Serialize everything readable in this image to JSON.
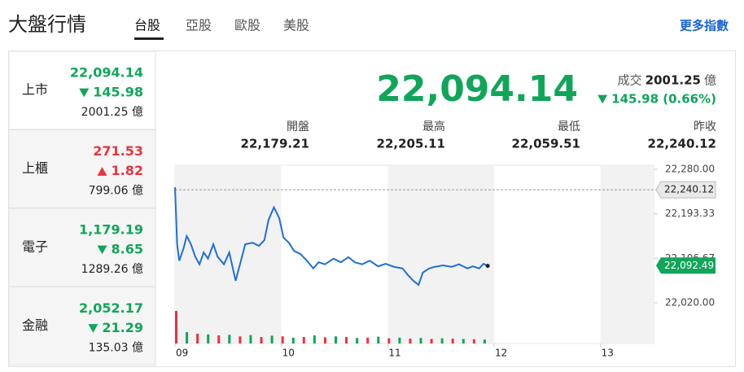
{
  "header": {
    "title": "大盤行情",
    "tabs": [
      "台股",
      "亞股",
      "歐股",
      "美股"
    ],
    "active_tab": 0,
    "more_link": "更多指數"
  },
  "sidebar": [
    {
      "name": "上市",
      "price": "22,094.14",
      "change": "145.98",
      "direction": "down",
      "turnover": "2001.25 億"
    },
    {
      "name": "上櫃",
      "price": "271.53",
      "change": "1.82",
      "direction": "up",
      "turnover": "799.06 億"
    },
    {
      "name": "電子",
      "price": "1,179.19",
      "change": "8.65",
      "direction": "down",
      "turnover": "1289.26 億"
    },
    {
      "name": "金融",
      "price": "2,052.17",
      "change": "21.29",
      "direction": "down",
      "turnover": "135.03 億"
    }
  ],
  "summary": {
    "price": "22,094.14",
    "turnover_label": "成交",
    "turnover": "2001.25",
    "turnover_unit": "億",
    "change": "145.98 (0.66%)",
    "direction": "down",
    "stats": [
      {
        "label": "開盤",
        "value": "22,179.21"
      },
      {
        "label": "最高",
        "value": "22,205.11"
      },
      {
        "label": "最低",
        "value": "22,059.51"
      },
      {
        "label": "昨收",
        "value": "22,240.12"
      }
    ]
  },
  "chart_data": {
    "type": "line",
    "color": "#1f6fd6",
    "x": [
      9.0,
      9.02,
      9.04,
      9.08,
      9.11,
      9.15,
      9.19,
      9.23,
      9.27,
      9.31,
      9.36,
      9.4,
      9.46,
      9.51,
      9.57,
      9.62,
      9.66,
      9.73,
      9.79,
      9.84,
      9.88,
      9.93,
      9.98,
      10.02,
      10.07,
      10.12,
      10.18,
      10.24,
      10.3,
      10.35,
      10.41,
      10.49,
      10.56,
      10.63,
      10.69,
      10.76,
      10.83,
      10.91,
      10.98,
      11.06,
      11.14,
      11.19,
      11.24,
      11.29,
      11.33,
      11.39,
      11.44,
      11.52,
      11.6,
      11.67,
      11.75,
      11.8,
      11.86,
      11.9,
      11.94
    ],
    "values": [
      22245,
      22134,
      22102,
      22126,
      22150,
      22134,
      22110,
      22095,
      22118,
      22106,
      22134,
      22110,
      22095,
      22118,
      22063,
      22102,
      22134,
      22137,
      22131,
      22142,
      22182,
      22206,
      22185,
      22147,
      22137,
      22121,
      22115,
      22102,
      22087,
      22099,
      22095,
      22106,
      22099,
      22109,
      22099,
      22095,
      22102,
      22091,
      22096,
      22090,
      22087,
      22074,
      22063,
      22055,
      22079,
      22087,
      22090,
      22093,
      22090,
      22095,
      22087,
      22091,
      22087,
      22096,
      22092
    ],
    "xlim": [
      9,
      13.5
    ],
    "ylim": [
      22020,
      22280
    ],
    "xticks": [
      {
        "value": 9,
        "label": "09"
      },
      10,
      11,
      12,
      13
    ],
    "yticks": [
      {
        "value": 22280,
        "label": "22,280.00"
      },
      {
        "value": 22193.33,
        "label": "22,193.33"
      },
      {
        "value": 22106.67,
        "label": "22,106.67"
      },
      {
        "value": 22020,
        "label": "22,020.00"
      }
    ],
    "reference": {
      "value": 22240.12,
      "label": "22,240.12"
    },
    "last": {
      "value": 22092.49,
      "label": "22,092.49"
    },
    "shaded": [
      [
        9,
        10
      ],
      [
        11,
        12
      ],
      [
        13,
        13.5
      ]
    ],
    "volume": {
      "x": [
        9.0,
        9.1,
        9.2,
        9.3,
        9.4,
        9.5,
        9.6,
        9.7,
        9.8,
        9.9,
        10.0,
        10.1,
        10.2,
        10.3,
        10.4,
        10.5,
        10.6,
        10.7,
        10.8,
        10.9,
        11.0,
        11.1,
        11.2,
        11.3,
        11.4,
        11.5,
        11.6,
        11.7,
        11.8,
        11.9
      ],
      "values": [
        100,
        35,
        30,
        28,
        25,
        27,
        22,
        26,
        20,
        24,
        22,
        18,
        20,
        25,
        19,
        22,
        20,
        17,
        18,
        21,
        16,
        18,
        15,
        17,
        14,
        16,
        15,
        14,
        13,
        12
      ],
      "ylim": [
        0,
        100
      ],
      "colors": [
        "#e8343f",
        "#11a55a"
      ]
    }
  }
}
